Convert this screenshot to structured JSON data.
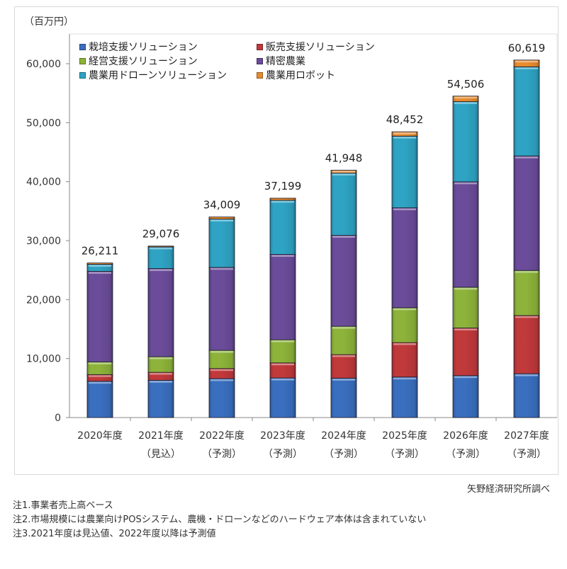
{
  "chart_data": {
    "type": "bar",
    "stacked": true,
    "unit_label": "（百万円）",
    "categories": [
      {
        "line1": "2020年度",
        "line2": ""
      },
      {
        "line1": "2021年度",
        "line2": "（見込）"
      },
      {
        "line1": "2022年度",
        "line2": "（予測）"
      },
      {
        "line1": "2023年度",
        "line2": "（予測）"
      },
      {
        "line1": "2024年度",
        "line2": "（予測）"
      },
      {
        "line1": "2025年度",
        "line2": "（予測）"
      },
      {
        "line1": "2026年度",
        "line2": "（予測）"
      },
      {
        "line1": "2027年度",
        "line2": "（予測）"
      }
    ],
    "series": [
      {
        "name": "栽培支援ソリューション",
        "color": "#3a6fbf",
        "values": [
          6150,
          6320,
          6600,
          6710,
          6680,
          6870,
          7110,
          7430
        ]
      },
      {
        "name": "販売支援ソリューション",
        "color": "#c0393b",
        "values": [
          1130,
          1350,
          1710,
          2560,
          3990,
          5840,
          8080,
          9870
        ]
      },
      {
        "name": "経営支援ソリューション",
        "color": "#8db33a",
        "values": [
          2160,
          2640,
          3080,
          3920,
          4800,
          5910,
          6910,
          7640
        ]
      },
      {
        "name": "精密農業",
        "color": "#6b4c9a",
        "values": [
          15350,
          14950,
          14070,
          14470,
          15430,
          16940,
          17870,
          19420
        ]
      },
      {
        "name": "農業用ドローンソリューション",
        "color": "#2fa3c4",
        "values": [
          1200,
          3670,
          8200,
          9180,
          10550,
          12160,
          13600,
          15110
        ]
      },
      {
        "name": "農業用ロボット",
        "color": "#e88b2e",
        "values": [
          221,
          146,
          349,
          359,
          498,
          732,
          936,
          1149
        ]
      }
    ],
    "totals": [
      26211,
      29076,
      34009,
      37199,
      41948,
      48452,
      54506,
      60619
    ],
    "total_labels": [
      "26,211",
      "29,076",
      "34,009",
      "37,199",
      "41,948",
      "48,452",
      "54,506",
      "60,619"
    ],
    "y_ticks": [
      0,
      10000,
      20000,
      30000,
      40000,
      50000,
      60000
    ],
    "y_tick_labels": [
      "0",
      "10,000",
      "20,000",
      "30,000",
      "40,000",
      "50,000",
      "60,000"
    ],
    "ylim": [
      0,
      60000
    ],
    "grid": false,
    "legend_position": "top-left (inside plot, 2 columns)",
    "xlabel": "",
    "ylabel": "百万円"
  },
  "source": "矢野経済研究所調べ",
  "notes": [
    "注1.事業者売上高ベース",
    "注2.市場規模には農業向けPOSシステム、農機・ドローンなどのハードウェア本体は含まれていない",
    "注3.2021年度は見込値、2022年度以降は予測値"
  ]
}
